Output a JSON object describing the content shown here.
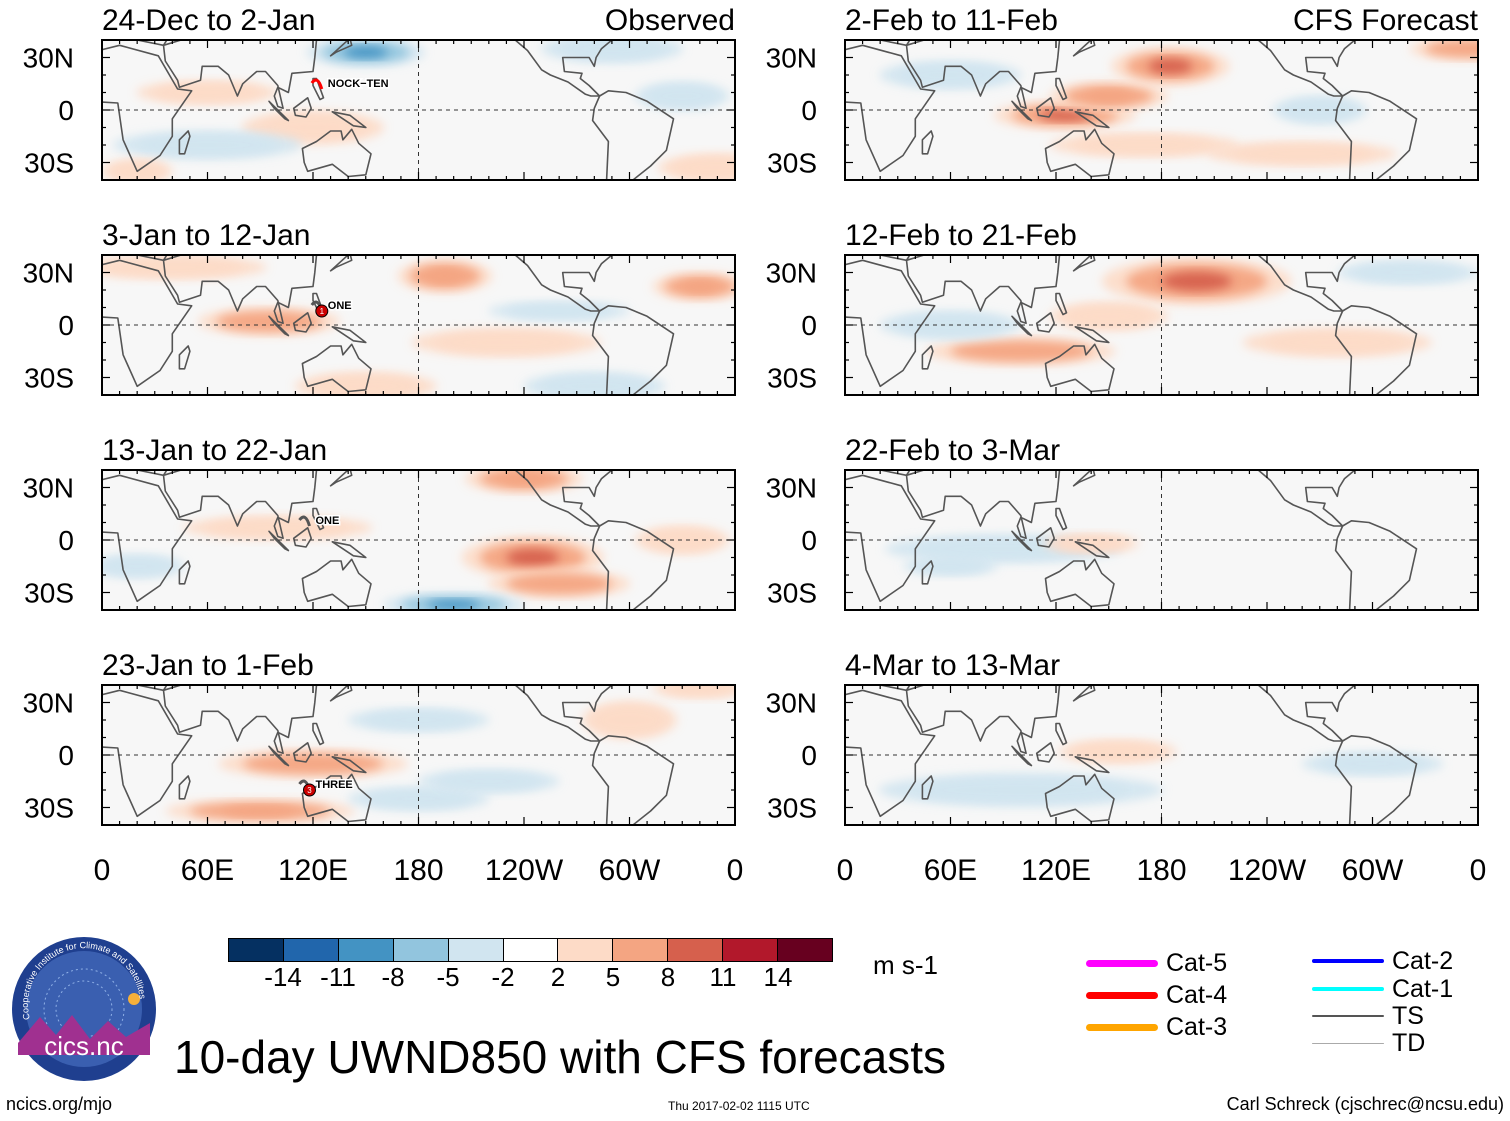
{
  "header": {
    "observed_label": "Observed",
    "forecast_label": "CFS Forecast"
  },
  "panels": [
    {
      "id": "obs-1",
      "column": "observed",
      "period": "24-Dec to 2-Jan",
      "storms": [
        {
          "name": "NOCK−TEN",
          "lon": 125,
          "lat": 12,
          "category_color": "#ff0000",
          "marker": ""
        }
      ]
    },
    {
      "id": "obs-2",
      "column": "observed",
      "period": "3-Jan to 12-Jan",
      "storms": [
        {
          "name": "ONE",
          "lon": 125,
          "lat": 8,
          "category_color": "#555555",
          "marker": "1"
        }
      ]
    },
    {
      "id": "obs-3",
      "column": "observed",
      "period": "13-Jan to 22-Jan",
      "storms": [
        {
          "name": "ONE",
          "lon": 118,
          "lat": 8,
          "category_color": "#555555",
          "marker": ""
        }
      ]
    },
    {
      "id": "obs-4",
      "column": "observed",
      "period": "23-Jan to 1-Feb",
      "storms": [
        {
          "name": "THREE",
          "lon": 118,
          "lat": -20,
          "category_color": "#555555",
          "marker": "3"
        }
      ]
    },
    {
      "id": "fcst-1",
      "column": "forecast",
      "period": "2-Feb to 11-Feb",
      "storms": []
    },
    {
      "id": "fcst-2",
      "column": "forecast",
      "period": "12-Feb to 21-Feb",
      "storms": []
    },
    {
      "id": "fcst-3",
      "column": "forecast",
      "period": "22-Feb to 3-Mar",
      "storms": []
    },
    {
      "id": "fcst-4",
      "column": "forecast",
      "period": "4-Mar to 13-Mar",
      "storms": []
    }
  ],
  "axes": {
    "lat_labels": [
      "30N",
      "0",
      "30S"
    ],
    "lat_values": [
      30,
      0,
      -30
    ],
    "lon_labels": [
      "0",
      "60E",
      "120E",
      "180",
      "120W",
      "60W",
      "0"
    ],
    "lon_values": [
      0,
      60,
      120,
      180,
      240,
      300,
      360
    ],
    "lat_range": [
      -40,
      40
    ],
    "lon_range": [
      0,
      360
    ]
  },
  "colorbar": {
    "colors": [
      "#053061",
      "#2166ac",
      "#4393c3",
      "#92c5de",
      "#d1e5f0",
      "#ffffff",
      "#fddbc7",
      "#f4a582",
      "#d6604d",
      "#b2182b",
      "#67001f"
    ],
    "tick_labels": [
      "-14",
      "-11",
      "-8",
      "-5",
      "-2",
      "2",
      "5",
      "8",
      "11",
      "14"
    ],
    "units": "m s-1"
  },
  "legend": [
    {
      "label": "Cat-5",
      "color": "#ff00ff",
      "weight": 7
    },
    {
      "label": "Cat-4",
      "color": "#ff0000",
      "weight": 7
    },
    {
      "label": "Cat-3",
      "color": "#ffa500",
      "weight": 7
    },
    {
      "label": "Cat-2",
      "color": "#0000ff",
      "weight": 4
    },
    {
      "label": "Cat-1",
      "color": "#00ffff",
      "weight": 4
    },
    {
      "label": "TS",
      "color": "#555555",
      "weight": 2
    },
    {
      "label": "TD",
      "color": "#aaaaaa",
      "weight": 1
    }
  ],
  "title": "10-day UWND850 with CFS forecasts",
  "logo_text": "cics.nc",
  "logo_ring_text": "Cooperative Institute for Climate and Satellites",
  "footer": {
    "website": "ncics.org/mjo",
    "timestamp": "Thu 2017-02-02 1115 UTC",
    "author": "Carl Schreck (cjschrec@ncsu.edu)"
  }
}
